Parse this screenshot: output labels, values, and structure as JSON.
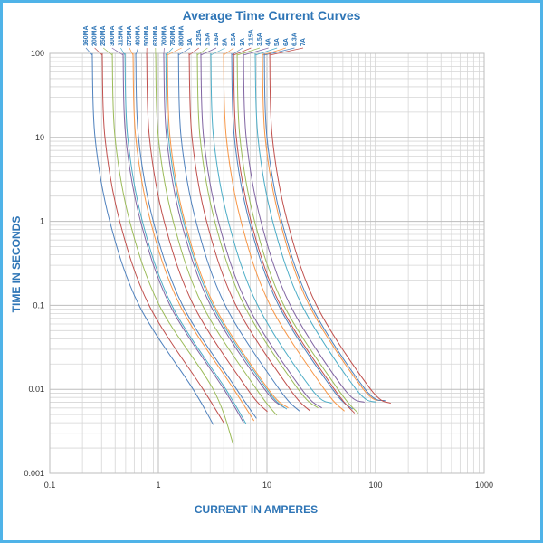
{
  "chart_data": {
    "type": "line",
    "title": "Average Time Current Curves",
    "xlabel": "CURRENT IN AMPERES",
    "ylabel": "TIME IN SECONDS",
    "xscale": "log",
    "yscale": "log",
    "xlim": [
      0.1,
      1000
    ],
    "ylim": [
      0.001,
      100
    ],
    "xticks": [
      "0.1",
      "1",
      "10",
      "100",
      "1000"
    ],
    "yticks": [
      "100",
      "10",
      "1",
      "0.1",
      "0.01",
      "0.001"
    ],
    "grid": true,
    "legend": "top, rotated labels with leader lines",
    "colors": [
      "#4F81BD",
      "#C0504D",
      "#9BBB59",
      "#8064A2",
      "#4BACC6",
      "#F79646"
    ],
    "series": [
      {
        "name": "160MA",
        "points": [
          [
            0.246,
            100
          ],
          [
            0.261,
            10
          ],
          [
            0.357,
            1
          ],
          [
            0.664,
            0.1
          ],
          [
            2.09,
            0.01
          ],
          [
            3.2,
            0.0038
          ]
        ]
      },
      {
        "name": "200MA",
        "points": [
          [
            0.304,
            100
          ],
          [
            0.322,
            10
          ],
          [
            0.441,
            1
          ],
          [
            0.821,
            0.1
          ],
          [
            2.58,
            0.01
          ],
          [
            4.0,
            0.004
          ]
        ]
      },
      {
        "name": "250MA",
        "points": [
          [
            0.376,
            100
          ],
          [
            0.399,
            10
          ],
          [
            0.545,
            1
          ],
          [
            1.02,
            0.1
          ],
          [
            3.2,
            0.01
          ],
          [
            4.9,
            0.0022
          ]
        ]
      },
      {
        "name": "300MA",
        "points": [
          [
            0.473,
            100
          ],
          [
            0.501,
            10
          ],
          [
            0.686,
            1
          ],
          [
            1.28,
            0.1
          ],
          [
            4.02,
            0.01
          ],
          [
            6.1,
            0.004
          ]
        ]
      },
      {
        "name": "315MA",
        "points": [
          [
            0.492,
            100
          ],
          [
            0.522,
            10
          ],
          [
            0.713,
            1
          ],
          [
            1.33,
            0.1
          ],
          [
            4.18,
            0.01
          ],
          [
            6.4,
            0.0039
          ]
        ]
      },
      {
        "name": "375MA",
        "points": [
          [
            0.584,
            100
          ],
          [
            0.619,
            10
          ],
          [
            0.847,
            1
          ],
          [
            1.58,
            0.1
          ],
          [
            4.96,
            0.01
          ],
          [
            7.6,
            0.0042
          ]
        ]
      },
      {
        "name": "400MA",
        "points": [
          [
            0.619,
            100
          ],
          [
            0.656,
            10
          ],
          [
            0.898,
            1
          ],
          [
            1.67,
            0.1
          ],
          [
            5.26,
            0.01
          ],
          [
            8.0,
            0.0045
          ]
        ]
      },
      {
        "name": "500MA",
        "points": [
          [
            0.78,
            100
          ],
          [
            0.827,
            10
          ],
          [
            1.13,
            1
          ],
          [
            2.11,
            0.1
          ],
          [
            6.63,
            0.01
          ],
          [
            10.1,
            0.0054
          ]
        ]
      },
      {
        "name": "630MA",
        "points": [
          [
            0.944,
            100
          ],
          [
            1.0,
            10
          ],
          [
            1.37,
            1
          ],
          [
            2.55,
            0.1
          ],
          [
            8.02,
            0.01
          ],
          [
            12.3,
            0.0049
          ]
        ]
      },
      {
        "name": "700MA",
        "points": [
          [
            1.12,
            100
          ],
          [
            1.19,
            10
          ],
          [
            1.62,
            1
          ],
          [
            3.02,
            0.1
          ],
          [
            9.52,
            0.01
          ],
          [
            14.6,
            0.006
          ]
        ]
      },
      {
        "name": "750MA",
        "points": [
          [
            1.17,
            100
          ],
          [
            1.24,
            10
          ],
          [
            1.7,
            1
          ],
          [
            3.16,
            0.1
          ],
          [
            9.95,
            0.01
          ],
          [
            15.2,
            0.0058
          ]
        ]
      },
      {
        "name": "800MA",
        "points": [
          [
            1.21,
            100
          ],
          [
            1.28,
            10
          ],
          [
            1.75,
            1
          ],
          [
            3.27,
            0.1
          ],
          [
            10.3,
            0.01
          ],
          [
            15.7,
            0.006
          ]
        ]
      },
      {
        "name": "1A",
        "points": [
          [
            1.53,
            100
          ],
          [
            1.62,
            10
          ],
          [
            2.22,
            1
          ],
          [
            4.13,
            0.1
          ],
          [
            13.0,
            0.01
          ],
          [
            19.9,
            0.0055
          ]
        ]
      },
      {
        "name": "1.25A",
        "points": [
          [
            1.92,
            100
          ],
          [
            2.04,
            10
          ],
          [
            2.78,
            1
          ],
          [
            5.18,
            0.1
          ],
          [
            16.3,
            0.01
          ],
          [
            25,
            0.0055
          ]
        ]
      },
      {
        "name": "1.5A",
        "points": [
          [
            2.28,
            100
          ],
          [
            2.42,
            10
          ],
          [
            3.31,
            1
          ],
          [
            6.16,
            0.1
          ],
          [
            19.4,
            0.01
          ],
          [
            29.6,
            0.006
          ]
        ]
      },
      {
        "name": "1.6A",
        "points": [
          [
            2.46,
            100
          ],
          [
            2.61,
            10
          ],
          [
            3.57,
            1
          ],
          [
            6.64,
            0.1
          ],
          [
            20.9,
            0.01
          ],
          [
            32,
            0.006
          ]
        ]
      },
      {
        "name": "2A",
        "points": [
          [
            3.04,
            100
          ],
          [
            3.22,
            10
          ],
          [
            4.41,
            1
          ],
          [
            8.21,
            0.1
          ],
          [
            25.8,
            0.01
          ],
          [
            39.5,
            0.0068
          ]
        ]
      },
      {
        "name": "2.5A",
        "points": [
          [
            3.98,
            100
          ],
          [
            4.22,
            10
          ],
          [
            5.77,
            1
          ],
          [
            10.7,
            0.1
          ],
          [
            33.8,
            0.01
          ],
          [
            51.7,
            0.0055
          ]
        ]
      },
      {
        "name": "3A",
        "points": [
          [
            4.73,
            100
          ],
          [
            5.01,
            10
          ],
          [
            6.86,
            1
          ],
          [
            12.8,
            0.1
          ],
          [
            40.2,
            0.01
          ],
          [
            61.5,
            0.0058
          ]
        ]
      },
      {
        "name": "3.15A",
        "points": [
          [
            4.92,
            100
          ],
          [
            5.22,
            10
          ],
          [
            7.13,
            1
          ],
          [
            13.3,
            0.1
          ],
          [
            41.8,
            0.01
          ],
          [
            64,
            0.0052
          ]
        ]
      },
      {
        "name": "3.5A",
        "points": [
          [
            5.31,
            100
          ],
          [
            5.63,
            10
          ],
          [
            7.7,
            1
          ],
          [
            14.3,
            0.1
          ],
          [
            45.1,
            0.01
          ],
          [
            69,
            0.0052
          ]
        ]
      },
      {
        "name": "4A",
        "points": [
          [
            6.07,
            100
          ],
          [
            6.43,
            10
          ],
          [
            8.8,
            1
          ],
          [
            16.4,
            0.1
          ],
          [
            51.6,
            0.01
          ],
          [
            79,
            0.007
          ]
        ]
      },
      {
        "name": "5A",
        "points": [
          [
            7.79,
            100
          ],
          [
            8.26,
            10
          ],
          [
            11.3,
            1
          ],
          [
            21.0,
            0.1
          ],
          [
            66.2,
            0.01
          ],
          [
            101,
            0.007
          ]
        ]
      },
      {
        "name": "6A",
        "points": [
          [
            9.08,
            100
          ],
          [
            9.62,
            10
          ],
          [
            13.2,
            1
          ],
          [
            24.5,
            0.1
          ],
          [
            77.2,
            0.01
          ],
          [
            118,
            0.0073
          ]
        ]
      },
      {
        "name": "6.3A",
        "points": [
          [
            9.44,
            100
          ],
          [
            10.0,
            10
          ],
          [
            13.7,
            1
          ],
          [
            25.5,
            0.1
          ],
          [
            80.2,
            0.01
          ],
          [
            123,
            0.0073
          ]
        ]
      },
      {
        "name": "7A",
        "points": [
          [
            10.6,
            100
          ],
          [
            11.2,
            10
          ],
          [
            15.4,
            1
          ],
          [
            28.6,
            0.1
          ],
          [
            90.1,
            0.01
          ],
          [
            138,
            0.0068
          ]
        ]
      }
    ]
  }
}
